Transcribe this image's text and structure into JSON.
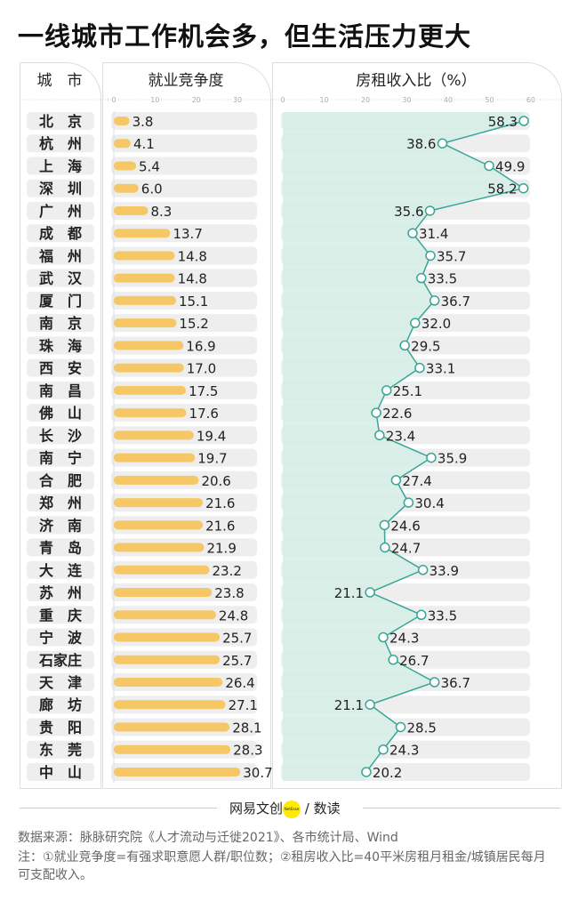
{
  "title": "一线城市工作机会多，但生活压力更大",
  "headers": {
    "city": "城　市",
    "employment": "就业竞争度",
    "rent": "房租收入比（%）"
  },
  "colors": {
    "bar": "#f5c766",
    "line": "#3aa597",
    "area": "#d6ede6",
    "pill": "#eeeeee"
  },
  "chart_data": {
    "type": "bar+line",
    "categories": [
      "北　京",
      "杭　州",
      "上　海",
      "深　圳",
      "广　州",
      "成　都",
      "福　州",
      "武　汉",
      "厦　门",
      "南　京",
      "珠　海",
      "西　安",
      "南　昌",
      "佛　山",
      "长　沙",
      "南　宁",
      "合　肥",
      "郑　州",
      "济　南",
      "青　岛",
      "大　连",
      "苏　州",
      "重　庆",
      "宁　波",
      "石家庄",
      "天　津",
      "廊　坊",
      "贵　阳",
      "东　莞",
      "中　山"
    ],
    "series": [
      {
        "name": "就业竞争度",
        "type": "bar",
        "xlim": [
          0,
          30
        ],
        "ticks": [
          0,
          10,
          20,
          30
        ],
        "values": [
          3.8,
          4.1,
          5.4,
          6.0,
          8.3,
          13.7,
          14.8,
          14.8,
          15.1,
          15.2,
          16.9,
          17.0,
          17.5,
          17.6,
          19.4,
          19.7,
          20.6,
          21.6,
          21.6,
          21.9,
          23.2,
          23.8,
          24.8,
          25.7,
          25.7,
          26.4,
          27.1,
          28.1,
          28.3,
          30.7
        ]
      },
      {
        "name": "房租收入比（%）",
        "type": "line",
        "xlim": [
          0,
          60
        ],
        "ticks": [
          0,
          10,
          20,
          30,
          40,
          50,
          60
        ],
        "values": [
          58.3,
          38.6,
          49.9,
          58.2,
          35.6,
          31.4,
          35.7,
          33.5,
          36.7,
          32.0,
          29.5,
          33.1,
          25.1,
          22.6,
          23.4,
          35.9,
          27.4,
          30.4,
          24.6,
          24.7,
          33.9,
          21.1,
          33.5,
          24.3,
          26.7,
          36.7,
          21.1,
          28.5,
          24.3,
          20.2
        ]
      }
    ]
  },
  "footer": {
    "logo_left": "网易文创",
    "logo_badge": "NetEase",
    "logo_right": "/ 数读",
    "source": "数据来源：脉脉研究院《人才流动与迁徙2021》、各市统计局、Wind",
    "note": "注：①就业竞争度=有强求职意愿人群/职位数；②租房收入比=40平米房租月租金/城镇居民每月可支配收入。"
  }
}
